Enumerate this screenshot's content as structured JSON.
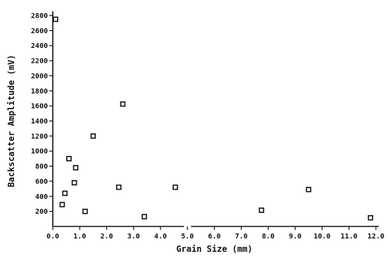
{
  "chart_data": {
    "type": "scatter",
    "xlabel": "Grain Size (mm)",
    "ylabel": "Backscatter Amplitude (mV)",
    "xlim": [
      0,
      12
    ],
    "ylim": [
      0,
      2800
    ],
    "xticks": [
      0,
      1,
      2,
      3,
      4,
      5,
      6,
      7,
      8,
      9,
      10,
      11,
      12
    ],
    "xtick_labels": [
      "0.0",
      "1.0",
      "2.0",
      "3.0",
      "4.0",
      "5.0",
      "6.0",
      "7.0",
      "8.0",
      "9.0",
      "10.0",
      "11.0",
      "12.0"
    ],
    "yticks": [
      200,
      400,
      600,
      800,
      1000,
      1200,
      1400,
      1600,
      1800,
      2000,
      2200,
      2400,
      2600,
      2800
    ],
    "ytick_labels": [
      "200",
      "400",
      "600",
      "800",
      "1000",
      "1200",
      "1400",
      "1600",
      "1800",
      "2000",
      "2200",
      "2400",
      "2600",
      "2800"
    ],
    "x_axis_break_at": 5.0,
    "marker": "open-square",
    "grid": false,
    "points": [
      {
        "x": 0.1,
        "y": 2750
      },
      {
        "x": 0.35,
        "y": 290
      },
      {
        "x": 0.45,
        "y": 440
      },
      {
        "x": 0.6,
        "y": 900
      },
      {
        "x": 0.8,
        "y": 580
      },
      {
        "x": 0.85,
        "y": 780
      },
      {
        "x": 1.2,
        "y": 200
      },
      {
        "x": 1.5,
        "y": 1200
      },
      {
        "x": 2.45,
        "y": 520
      },
      {
        "x": 2.6,
        "y": 1625
      },
      {
        "x": 3.4,
        "y": 130
      },
      {
        "x": 4.55,
        "y": 520
      },
      {
        "x": 7.75,
        "y": 215
      },
      {
        "x": 9.5,
        "y": 490
      },
      {
        "x": 11.8,
        "y": 115
      }
    ]
  }
}
